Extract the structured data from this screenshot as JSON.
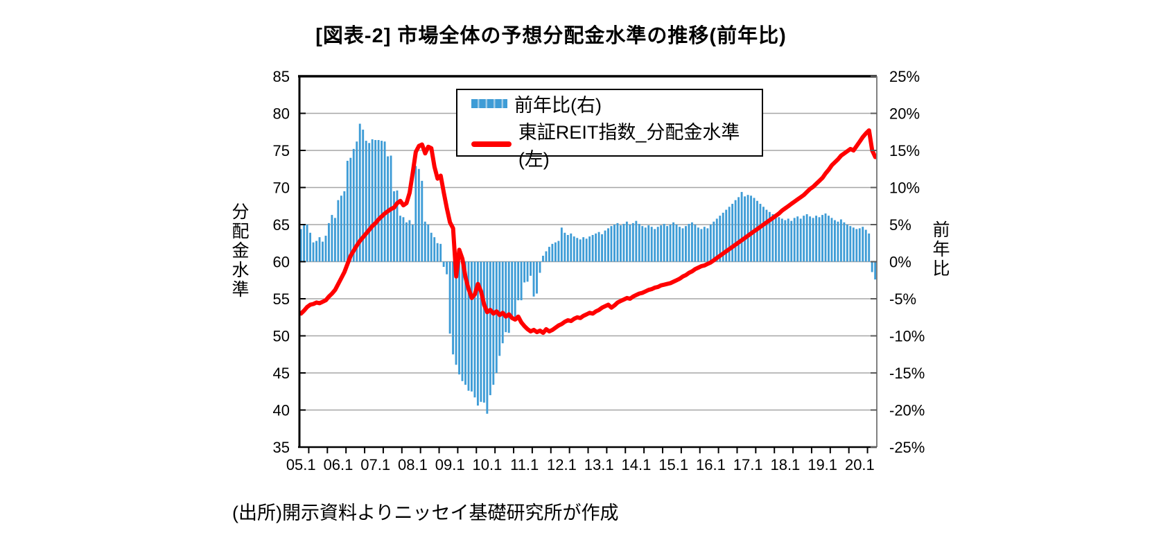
{
  "title": "[図表-2] 市場全体の予想分配金水準の推移(前年比)",
  "source": "(出所)開示資料よりニッセイ基礎研究所が作成",
  "legend": {
    "items": [
      {
        "label": "前年比(右)",
        "type": "bar",
        "color": "#3E9CD6"
      },
      {
        "label": "東証REIT指数_分配金水準(左)",
        "type": "line",
        "color": "#FF0000"
      }
    ]
  },
  "left_axis": {
    "title": "分配金水準",
    "labels": [
      "85",
      "80",
      "75",
      "70",
      "65",
      "60",
      "55",
      "50",
      "45",
      "40",
      "35"
    ],
    "min": 35,
    "max": 85,
    "step": 5
  },
  "right_axis": {
    "title": "前年比",
    "labels": [
      "25%",
      "20%",
      "15%",
      "10%",
      "5%",
      "0%",
      "-5%",
      "-10%",
      "-15%",
      "-20%",
      "-25%"
    ],
    "min": -25,
    "max": 25,
    "step": 5
  },
  "x_axis": {
    "labels": [
      "05.1",
      "06.1",
      "07.1",
      "08.1",
      "09.1",
      "10.1",
      "11.1",
      "12.1",
      "13.1",
      "14.1",
      "15.1",
      "16.1",
      "17.1",
      "18.1",
      "19.1",
      "20.1"
    ],
    "months_per_label": 12,
    "minor_tick_every_months": 6
  },
  "chart_data": {
    "type": "bar",
    "note": "monthly data 2005.01 - 2020.06; bars on right % axis, line on left level axis",
    "x_range": "2005.01-2020.06",
    "grid": true,
    "colors": {
      "bar": "#3E9CD6",
      "line": "#FF0000",
      "grid": "#A6A6A6",
      "frame": "#000000",
      "right_axis": "#808080"
    },
    "baseline_right": 0,
    "series": [
      {
        "name": "前年比(右)",
        "type": "bar",
        "axis": "right",
        "unit": "%",
        "values": [
          4.4,
          4.9,
          5.0,
          3.9,
          2.6,
          2.8,
          3.3,
          2.7,
          3.5,
          5.2,
          6.3,
          5.9,
          8.3,
          8.9,
          9.5,
          13.6,
          14.0,
          15.2,
          16.2,
          18.6,
          17.8,
          16.3,
          16.0,
          16.5,
          16.4,
          16.4,
          16.3,
          16.2,
          14.2,
          14.3,
          9.5,
          9.6,
          6.2,
          6.0,
          5.3,
          5.6,
          5.0,
          12.9,
          12.5,
          10.9,
          5.4,
          5.0,
          3.9,
          3.3,
          2.5,
          2.4,
          -0.7,
          -1.7,
          -9.7,
          -12.5,
          -13.9,
          -15.2,
          -16.1,
          -16.6,
          -17.4,
          -17.5,
          -18.3,
          -19.4,
          -18.9,
          -19.0,
          -20.5,
          -18.0,
          -16.6,
          -15.0,
          -12.7,
          -11.0,
          -9.5,
          -9.6,
          -7.8,
          -7.5,
          -5.2,
          -5.2,
          -2.8,
          -2.7,
          -1.9,
          -4.7,
          -4.3,
          -1.5,
          0.8,
          1.4,
          2.0,
          2.4,
          2.6,
          2.8,
          4.6,
          3.9,
          3.6,
          3.8,
          3.4,
          3.2,
          3.0,
          3.3,
          3.1,
          3.4,
          3.6,
          3.8,
          4.0,
          3.7,
          4.2,
          4.5,
          4.8,
          5.0,
          5.2,
          4.9,
          5.1,
          5.4,
          5.0,
          5.2,
          5.5,
          5.1,
          4.8,
          4.6,
          4.9,
          4.7,
          4.4,
          4.7,
          4.9,
          5.1,
          4.8,
          5.0,
          5.3,
          5.0,
          4.7,
          4.5,
          4.8,
          5.1,
          5.3,
          5.0,
          4.6,
          4.4,
          4.7,
          4.5,
          5.0,
          5.4,
          5.8,
          6.2,
          6.6,
          7.0,
          7.4,
          7.8,
          8.3,
          8.7,
          9.4,
          8.8,
          9.0,
          8.9,
          8.6,
          8.2,
          7.8,
          7.4,
          7.0,
          6.7,
          6.4,
          6.2,
          6.0,
          5.8,
          5.6,
          5.8,
          5.5,
          5.9,
          6.1,
          5.8,
          6.2,
          6.4,
          6.1,
          5.9,
          6.2,
          6.0,
          6.3,
          6.5,
          6.2,
          5.9,
          5.6,
          5.4,
          5.7,
          5.3,
          5.0,
          4.8,
          4.6,
          4.4,
          4.5,
          4.7,
          4.3,
          3.8,
          -1.4,
          -2.4
        ]
      },
      {
        "name": "東証REIT指数_分配金水準(左)",
        "type": "line",
        "axis": "left",
        "values": [
          53.0,
          53.4,
          53.9,
          54.2,
          54.3,
          54.5,
          54.4,
          54.6,
          54.8,
          55.3,
          55.7,
          56.2,
          57.0,
          57.8,
          58.6,
          59.7,
          60.8,
          61.5,
          62.2,
          62.8,
          63.3,
          63.8,
          64.3,
          64.8,
          65.2,
          65.7,
          66.1,
          66.5,
          66.8,
          67.1,
          67.3,
          67.9,
          68.2,
          67.6,
          67.9,
          69.3,
          72.0,
          74.8,
          75.6,
          75.8,
          74.6,
          75.5,
          75.3,
          72.8,
          71.2,
          71.6,
          69.3,
          67.2,
          65.3,
          64.5,
          58.0,
          61.6,
          60.4,
          57.9,
          56.3,
          55.1,
          55.6,
          57.0,
          56.0,
          54.2,
          53.2,
          53.5,
          53.0,
          53.3,
          52.8,
          53.1,
          52.6,
          52.9,
          52.4,
          52.2,
          52.6,
          51.8,
          51.3,
          50.9,
          50.6,
          50.8,
          50.5,
          50.7,
          50.4,
          50.9,
          50.6,
          50.8,
          51.1,
          51.4,
          51.6,
          51.9,
          52.1,
          52.0,
          52.3,
          52.5,
          52.4,
          52.7,
          52.9,
          53.1,
          53.0,
          53.3,
          53.5,
          53.8,
          54.0,
          54.2,
          53.8,
          54.1,
          54.5,
          54.7,
          54.9,
          55.1,
          55.0,
          55.3,
          55.5,
          55.7,
          55.8,
          56.0,
          56.2,
          56.3,
          56.5,
          56.6,
          56.8,
          56.9,
          57.0,
          57.1,
          57.3,
          57.5,
          57.7,
          58.0,
          58.2,
          58.5,
          58.7,
          59.0,
          59.2,
          59.4,
          59.5,
          59.7,
          59.9,
          60.2,
          60.5,
          60.8,
          61.1,
          61.4,
          61.7,
          62.0,
          62.3,
          62.6,
          62.9,
          63.2,
          63.5,
          63.8,
          64.1,
          64.4,
          64.7,
          65.0,
          65.3,
          65.6,
          65.9,
          66.2,
          66.5,
          66.9,
          67.2,
          67.5,
          67.8,
          68.1,
          68.4,
          68.7,
          69.0,
          69.4,
          69.8,
          70.1,
          70.5,
          70.9,
          71.3,
          71.9,
          72.4,
          73.0,
          73.4,
          73.8,
          74.3,
          74.6,
          74.9,
          75.2,
          75.0,
          75.6,
          76.2,
          76.8,
          77.3,
          77.7,
          75.0,
          74.1
        ]
      }
    ],
    "title": "[図表-2] 市場全体の予想分配金水準の推移(前年比)",
    "ylabel_left": "分配金水準",
    "ylim_left": [
      35,
      85
    ],
    "ylabel_right": "前年比",
    "ylim_right": [
      -25,
      25
    ],
    "legend_position": "top-center-inside"
  }
}
